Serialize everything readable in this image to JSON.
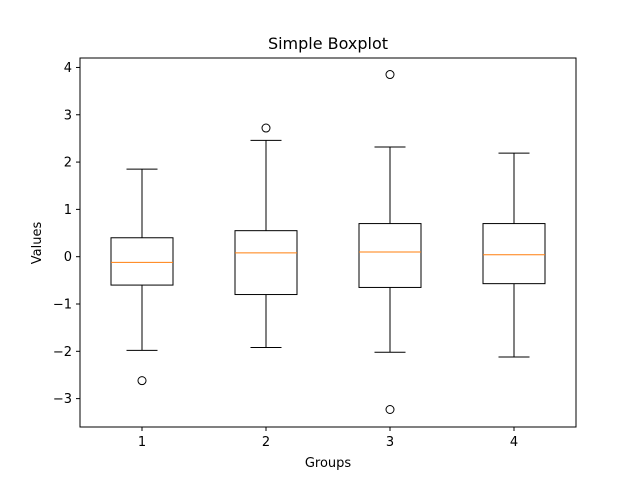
{
  "chart_data": {
    "type": "boxplot",
    "title": "Simple Boxplot",
    "xlabel": "Groups",
    "ylabel": "Values",
    "ylim": [
      -3.6,
      4.2
    ],
    "yticks": [
      -3,
      -2,
      -1,
      0,
      1,
      2,
      3,
      4
    ],
    "ytick_labels": [
      "−3",
      "−2",
      "−1",
      "0",
      "1",
      "2",
      "3",
      "4"
    ],
    "categories": [
      "1",
      "2",
      "3",
      "4"
    ],
    "boxes": [
      {
        "label": "1",
        "whislo": -1.98,
        "q1": -0.6,
        "med": -0.12,
        "q3": 0.4,
        "whishi": 1.85,
        "fliers": [
          -2.62
        ]
      },
      {
        "label": "2",
        "whislo": -1.92,
        "q1": -0.8,
        "med": 0.08,
        "q3": 0.55,
        "whishi": 2.46,
        "fliers": [
          2.72
        ]
      },
      {
        "label": "3",
        "whislo": -2.02,
        "q1": -0.65,
        "med": 0.1,
        "q3": 0.7,
        "whishi": 2.32,
        "fliers": [
          3.85,
          -3.23
        ]
      },
      {
        "label": "4",
        "whislo": -2.12,
        "q1": -0.57,
        "med": 0.04,
        "q3": 0.7,
        "whishi": 2.19,
        "fliers": []
      }
    ],
    "grid": false,
    "colors": {
      "box": "#000000",
      "median": "#ff7f0e",
      "flier": "#000000"
    }
  }
}
